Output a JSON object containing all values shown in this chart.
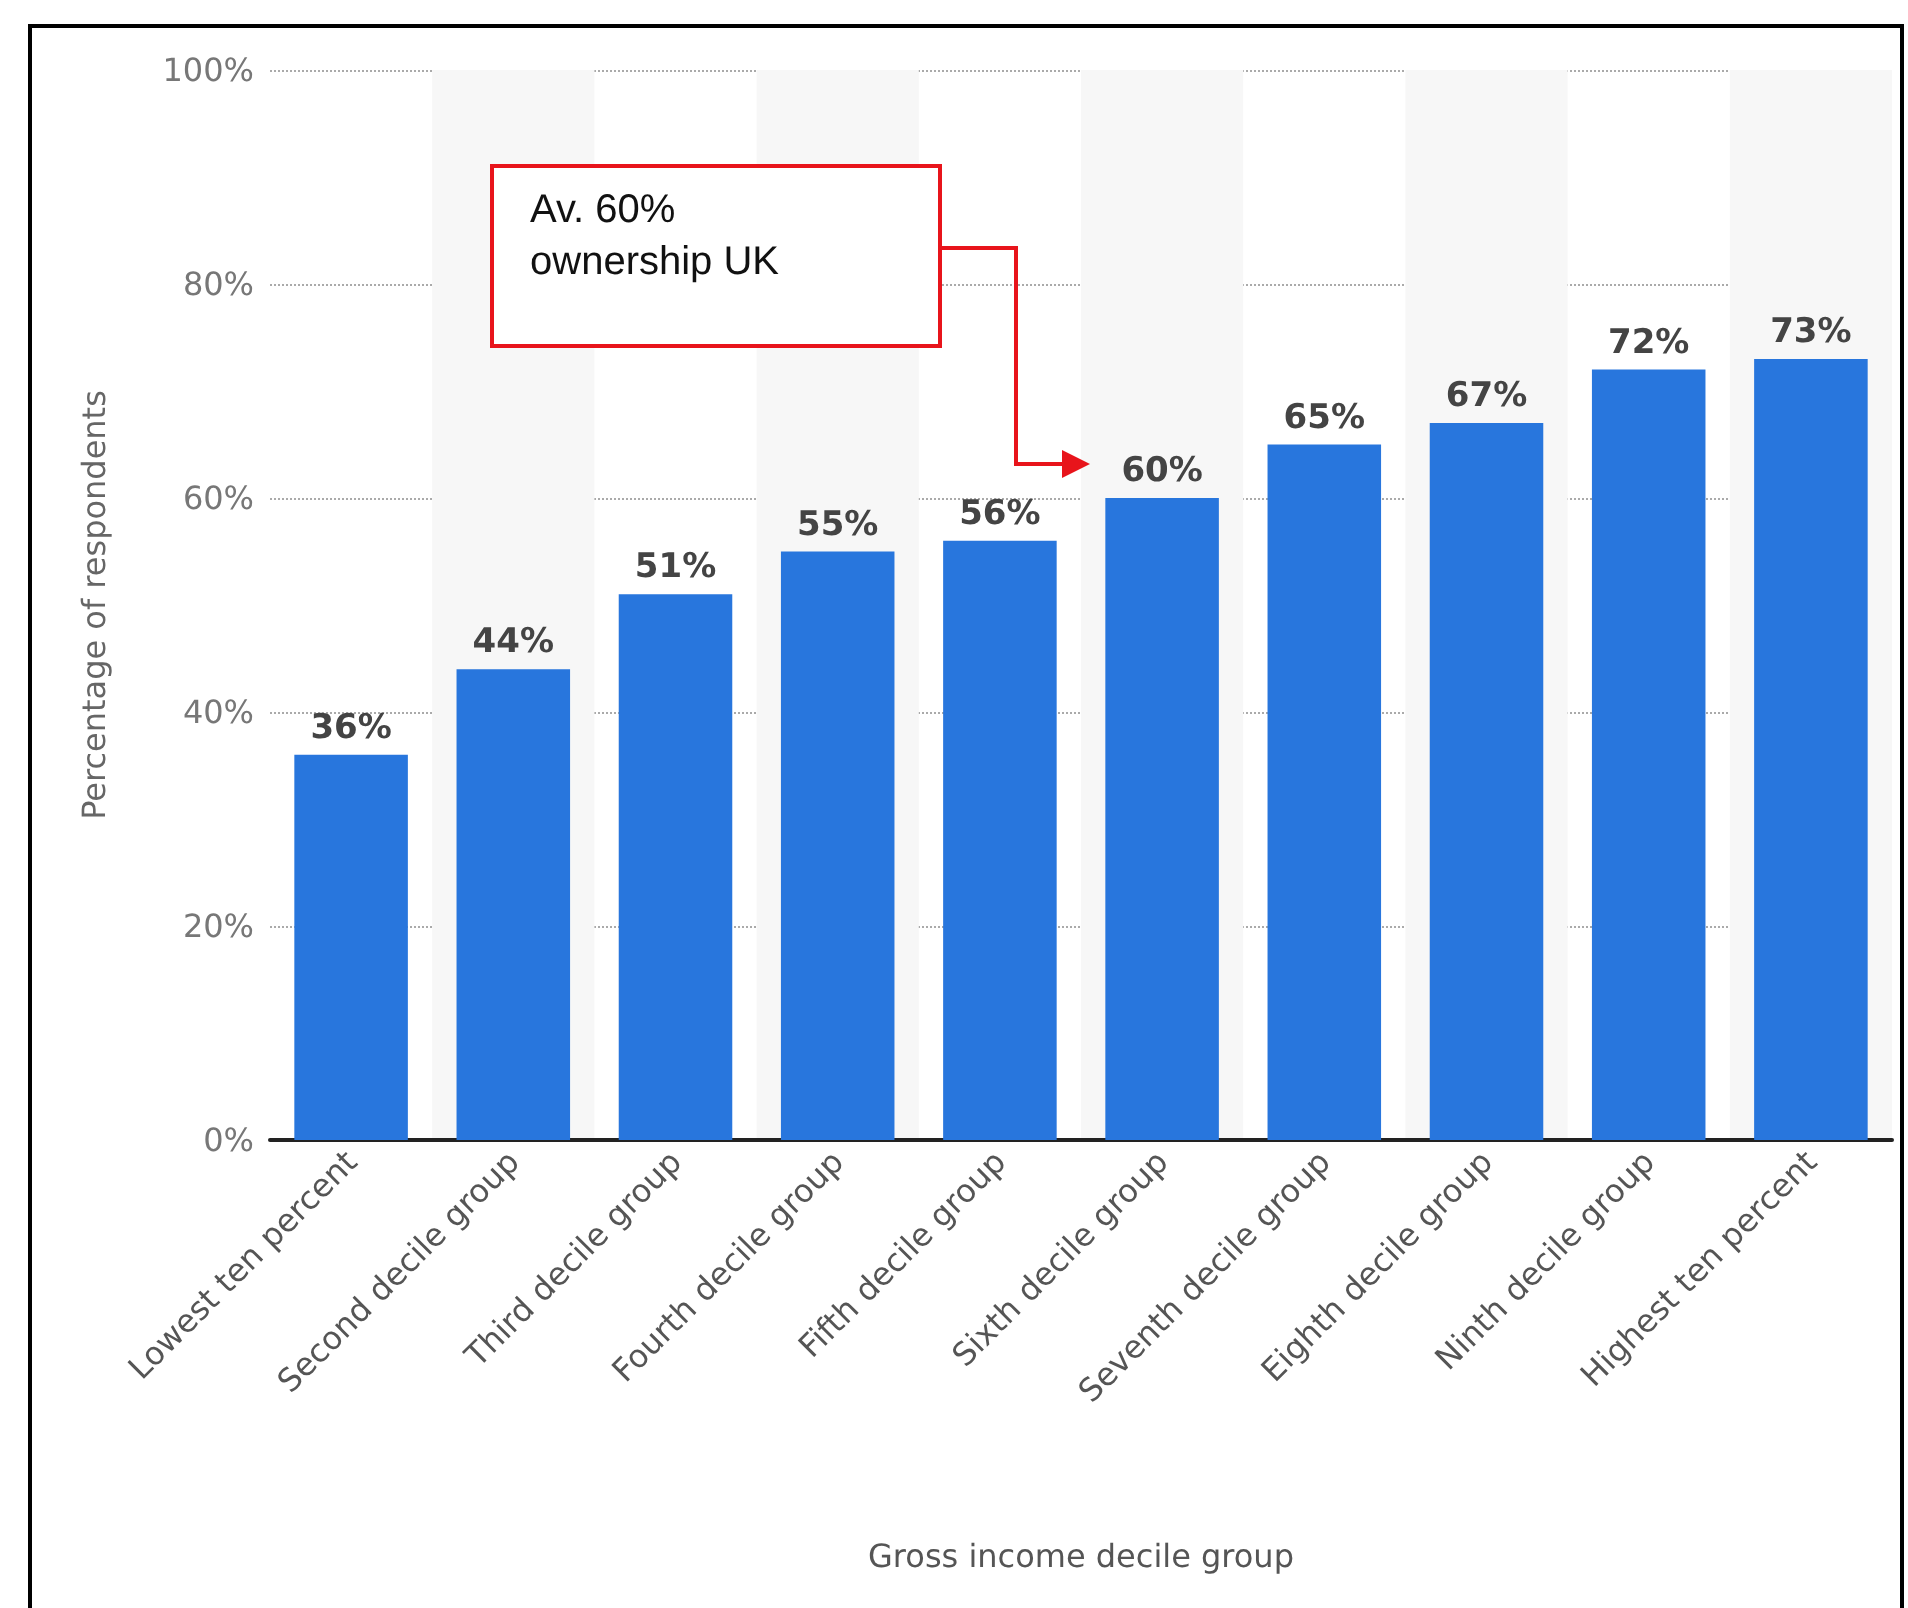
{
  "chart_data": {
    "type": "bar",
    "xlabel": "Gross income decile group",
    "ylabel": "Percentage of respondents",
    "categories": [
      "Lowest ten percent",
      "Second decile group",
      "Third decile group",
      "Fourth decile group",
      "Fifth decile group",
      "Sixth decile group",
      "Seventh decile group",
      "Eighth decile group",
      "Ninth decile group",
      "Highest ten percent"
    ],
    "values": [
      36,
      44,
      51,
      55,
      56,
      60,
      65,
      67,
      72,
      73
    ],
    "value_labels": [
      "36%",
      "44%",
      "51%",
      "55%",
      "56%",
      "60%",
      "65%",
      "67%",
      "72%",
      "73%"
    ],
    "color": "#2876dd",
    "ylim": [
      0,
      100
    ],
    "yticks": [
      {
        "value": 0,
        "label": "0%"
      },
      {
        "value": 20,
        "label": "20%"
      },
      {
        "value": 40,
        "label": "40%"
      },
      {
        "value": 60,
        "label": "60%"
      },
      {
        "value": 80,
        "label": "80%"
      },
      {
        "value": 100,
        "label": "100%"
      }
    ],
    "grid": "y",
    "annotations": [
      "Av. 60%\nownership UK"
    ]
  }
}
